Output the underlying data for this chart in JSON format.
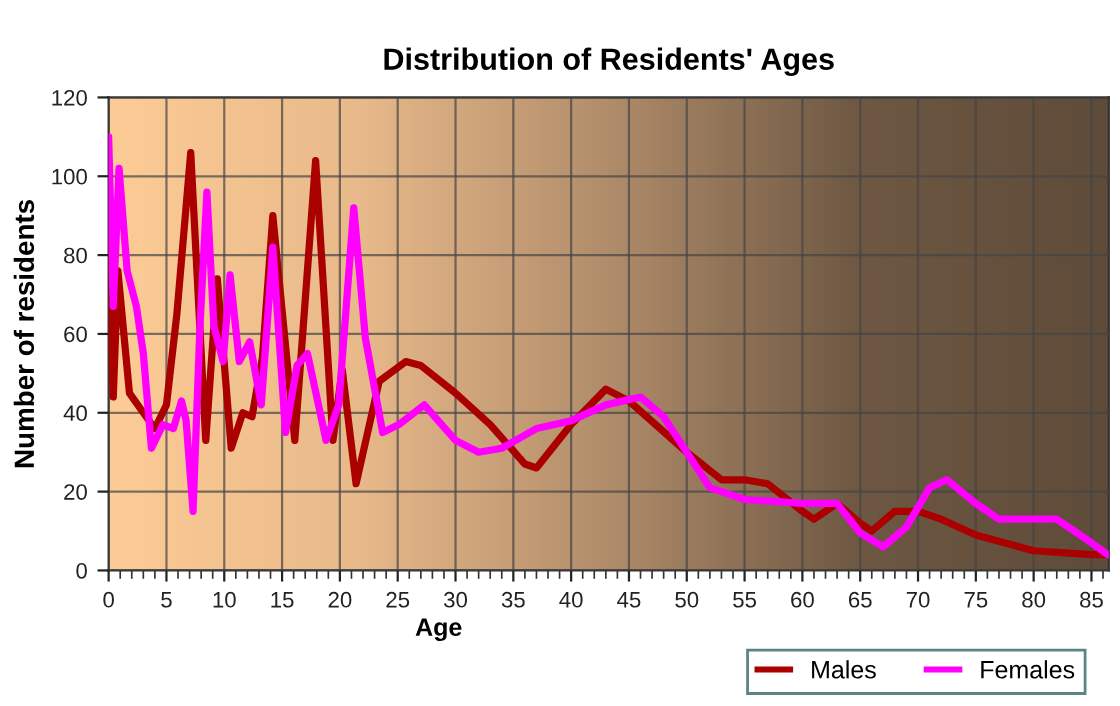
{
  "chart_data": {
    "type": "line",
    "title": "Distribution of Residents' Ages",
    "xlabel": "Age",
    "ylabel": "Number of residents",
    "xlim": [
      0,
      86.5
    ],
    "ylim": [
      0,
      120
    ],
    "xticks": [
      0,
      5,
      10,
      15,
      20,
      25,
      30,
      35,
      40,
      45,
      50,
      55,
      60,
      65,
      70,
      75,
      80,
      85
    ],
    "yticks": [
      0,
      20,
      40,
      60,
      80,
      100,
      120
    ],
    "grid": true,
    "legend": "bottom right",
    "series": [
      {
        "name": "Males",
        "color": "#aa0000",
        "x": [
          0,
          0.4,
          0.8,
          1.8,
          3,
          4,
          5,
          5.9,
          7.1,
          8.4,
          9.4,
          10.6,
          11.6,
          12.4,
          13.3,
          14.2,
          16.1,
          17.9,
          19.4,
          20.2,
          21.4,
          23.4,
          25.7,
          27,
          30,
          33,
          36,
          37,
          40,
          43,
          45,
          50,
          53,
          55,
          57,
          60,
          61,
          63,
          65,
          66,
          68,
          70,
          72,
          75,
          80,
          85,
          86.4
        ],
        "values": [
          84,
          44,
          76,
          45,
          40,
          36,
          42,
          65,
          106,
          33,
          74,
          31,
          40,
          39,
          54,
          90,
          33,
          104,
          33,
          51,
          22,
          48,
          53,
          52,
          45,
          37,
          27,
          26,
          37,
          46,
          43,
          30,
          23,
          23,
          22,
          15,
          13,
          17,
          12,
          10,
          15,
          15,
          13,
          9,
          5,
          4,
          4
        ]
      },
      {
        "name": "Females",
        "color": "#ff00ff",
        "x": [
          0,
          0.4,
          0.9,
          1.6,
          2.4,
          3,
          3.7,
          4.7,
          5.6,
          6.3,
          6.7,
          7.3,
          7.9,
          8.5,
          9.1,
          9.9,
          10.5,
          11.3,
          12.2,
          13.2,
          14.2,
          15.3,
          16.3,
          17.2,
          18.8,
          19.9,
          21.2,
          22.2,
          23.7,
          25.1,
          27.3,
          30,
          32,
          34,
          37,
          40,
          43,
          46,
          48,
          50,
          52,
          55,
          60,
          63,
          65,
          67,
          69,
          71,
          72.5,
          75,
          77,
          80,
          82,
          85,
          86.4
        ],
        "values": [
          110,
          67,
          102,
          76,
          67,
          55,
          31,
          37,
          36,
          43,
          38,
          15,
          62,
          96,
          62,
          53,
          75,
          53,
          58,
          42,
          82,
          35,
          52,
          55,
          33,
          42,
          92,
          59,
          35,
          37,
          42,
          33,
          30,
          31,
          36,
          38,
          42,
          44,
          39,
          30,
          21,
          18,
          17,
          17,
          9.5,
          6,
          11,
          21,
          23,
          17,
          13,
          13,
          13,
          7,
          4
        ]
      }
    ]
  }
}
